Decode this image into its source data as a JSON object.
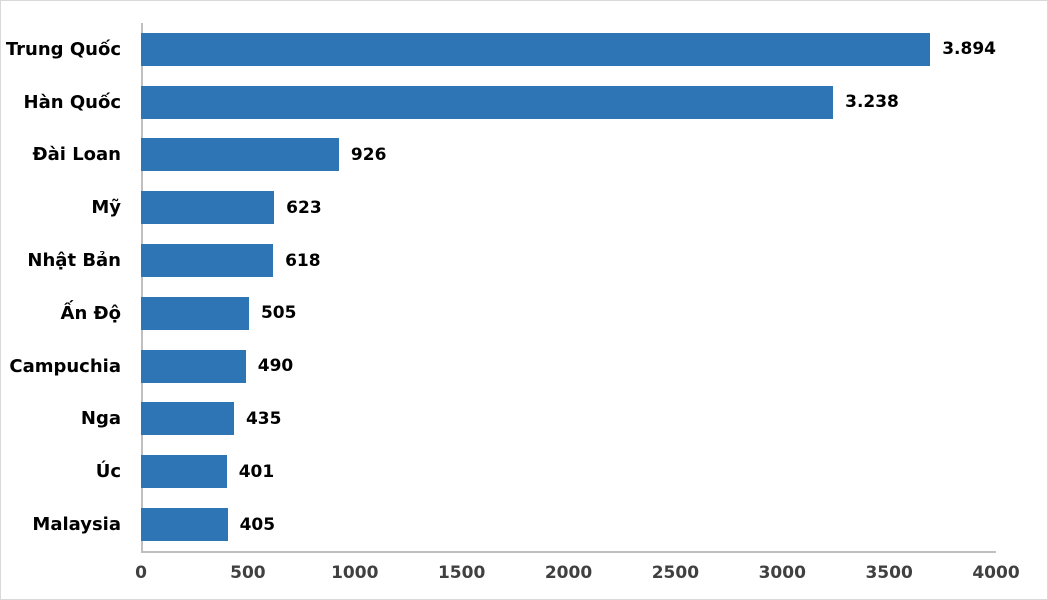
{
  "chart_data": {
    "type": "bar",
    "orientation": "horizontal",
    "title": "",
    "xlabel": "",
    "ylabel": "",
    "categories": [
      "Trung Quốc",
      "Hàn Quốc",
      "Đài Loan",
      "Mỹ",
      "Nhật Bản",
      "Ấn Độ",
      "Campuchia",
      "Nga",
      "Úc",
      "Malaysia"
    ],
    "values": [
      3894,
      3238,
      926,
      623,
      618,
      505,
      490,
      435,
      401,
      405
    ],
    "value_labels": [
      "3.894",
      "3.238",
      "926",
      "623",
      "618",
      "505",
      "490",
      "435",
      "401",
      "405"
    ],
    "xlim": [
      0,
      4000
    ],
    "x_ticks": [
      0,
      500,
      1000,
      1500,
      2000,
      2500,
      3000,
      3500,
      4000
    ],
    "x_tick_labels": [
      "0",
      "500",
      "1000",
      "1500",
      "2000",
      "2500",
      "3000",
      "3500",
      "4000"
    ],
    "grid": false,
    "legend": false,
    "bar_color": "#2E75B6",
    "axis_color": "#BFBFBF"
  }
}
